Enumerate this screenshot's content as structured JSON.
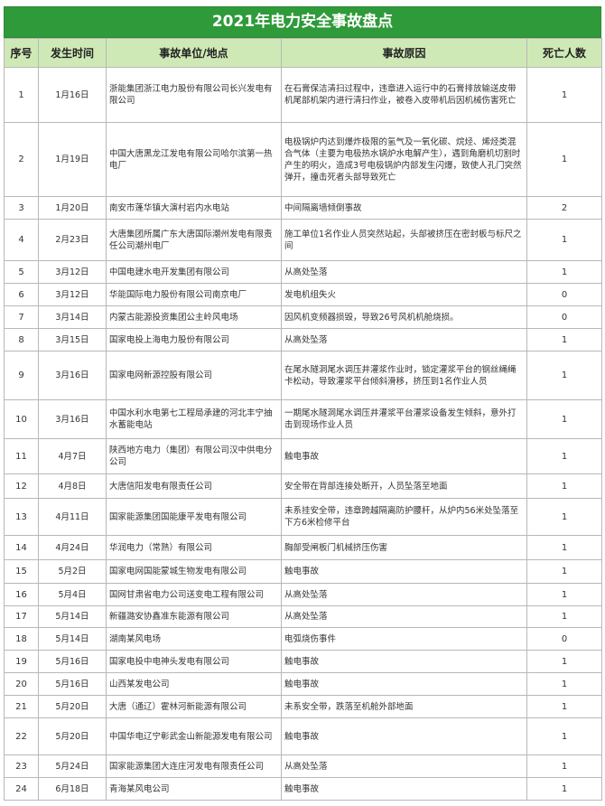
{
  "title": "2021年电力安全事故盘点",
  "headers": [
    "序号",
    "发生时间",
    "事故单位/地点",
    "事故原因",
    "死亡人数"
  ],
  "rows": [
    {
      "no": "1",
      "date": "1月16日",
      "unit": "浙能集团浙江电力股份有限公司长兴发电有限公司",
      "cause": "在石膏保洁清扫过程中，违章进入运行中的石膏排放输送皮带机尾部机架内进行清扫作业，被卷入皮带机后因机械伤害死亡",
      "deaths": "1"
    },
    {
      "no": "2",
      "date": "1月19日",
      "unit": "中国大唐黑龙江发电有限公司哈尔滨第一热电厂",
      "cause": "电极锅炉内达到爆炸极限的氢气及一氧化碳、烷烃、烯烃类混合气体（主要为电极热水锅炉水电解产生），遇到角磨机切割时产生的明火，造成3号电极锅炉内部发生闪爆，致使人孔门突然弹开，撞击死者头部导致死亡",
      "deaths": "1"
    },
    {
      "no": "3",
      "date": "1月20日",
      "unit": "南安市蓬华镇大演村岩内水电站",
      "cause": "中间隔离墙倾倒事故",
      "deaths": "2"
    },
    {
      "no": "4",
      "date": "2月23日",
      "unit": "大唐集团所属广东大唐国际潮州发电有限责任公司潮州电厂",
      "cause": "施工单位1名作业人员突然站起，头部被挤压在密封板与标尺之间",
      "deaths": "1"
    },
    {
      "no": "5",
      "date": "3月12日",
      "unit": "中国电建水电开发集团有限公司",
      "cause": "从高处坠落",
      "deaths": "1"
    },
    {
      "no": "6",
      "date": "3月12日",
      "unit": "华能国际电力股份有限公司南京电厂",
      "cause": "发电机组失火",
      "deaths": "0"
    },
    {
      "no": "7",
      "date": "3月14日",
      "unit": "内蒙古能源投资集团公主岭风电场",
      "cause": "因风机变频器损毁，导致26号风机机舱烧损。",
      "deaths": "0"
    },
    {
      "no": "8",
      "date": "3月15日",
      "unit": "国家电投上海电力股份有限公司",
      "cause": "从高处坠落",
      "deaths": "1"
    },
    {
      "no": "9",
      "date": "3月16日",
      "unit": "国家电网新源控股有限公司",
      "cause": "在尾水隧洞尾水调压井灌浆作业时，锁定灌浆平台的钢丝绳绳卡松动，导致灌浆平台倾斜滑移，挤压到1名作业人员",
      "deaths": "1"
    },
    {
      "no": "10",
      "date": "3月16日",
      "unit": "中国水利水电第七工程局承建的河北丰宁抽水蓄能电站",
      "cause": "一期尾水隧洞尾水调压井灌浆平台灌浆设备发生倾斜，意外打击到现场作业人员",
      "deaths": "1"
    },
    {
      "no": "11",
      "date": "4月7日",
      "unit": "陕西地方电力（集团）有限公司汉中供电分公司",
      "cause": "触电事故",
      "deaths": "1"
    },
    {
      "no": "12",
      "date": "4月8日",
      "unit": "大唐信阳发电有限责任公司",
      "cause": "安全带在背部连接处断开，人员坠落至地面",
      "deaths": "1"
    },
    {
      "no": "13",
      "date": "4月11日",
      "unit": "国家能源集团国能康平发电有限公司",
      "cause": "未系挂安全带，违章跨越隔离防护腰杆，从炉内56米处坠落至下方6米检修平台",
      "deaths": "1"
    },
    {
      "no": "14",
      "date": "4月24日",
      "unit": "华润电力（常熟）有限公司",
      "cause": "胸部受闸板门机械挤压伤害",
      "deaths": "1"
    },
    {
      "no": "15",
      "date": "5月2日",
      "unit": "国家电网国能蒙城生物发电有限公司",
      "cause": "触电事故",
      "deaths": "1"
    },
    {
      "no": "16",
      "date": "5月4日",
      "unit": "国网甘肃省电力公司送变电工程有限公司",
      "cause": "从高处坠落",
      "deaths": "1"
    },
    {
      "no": "17",
      "date": "5月14日",
      "unit": "新疆潞安协鑫准东能源有限公司",
      "cause": "从高处坠落",
      "deaths": "1"
    },
    {
      "no": "18",
      "date": "5月14日",
      "unit": "湖南某风电场",
      "cause": "电弧烧伤事件",
      "deaths": "0"
    },
    {
      "no": "19",
      "date": "5月16日",
      "unit": "国家电投中电神头发电有限公司",
      "cause": "触电事故",
      "deaths": "1"
    },
    {
      "no": "20",
      "date": "5月16日",
      "unit": "山西某发电公司",
      "cause": "触电事故",
      "deaths": "1"
    },
    {
      "no": "21",
      "date": "5月20日",
      "unit": "大唐（通辽）霍林河新能源有限公司",
      "cause": "未系安全带，跌落至机舱外部地面",
      "deaths": "1"
    },
    {
      "no": "22",
      "date": "5月20日",
      "unit": "中国华电辽宁彰武金山新能源发电有限公司",
      "cause": "触电事故",
      "deaths": "1"
    },
    {
      "no": "23",
      "date": "5月24日",
      "unit": "国家能源集团大连庄河发电有限责任公司",
      "cause": "从高处坠落",
      "deaths": "1"
    },
    {
      "no": "24",
      "date": "6月18日",
      "unit": "青海某风电公司",
      "cause": "触电事故",
      "deaths": "1"
    }
  ],
  "colors": {
    "title_bg": "#2f9a3a",
    "header_bg": "#cfe9b6"
  }
}
